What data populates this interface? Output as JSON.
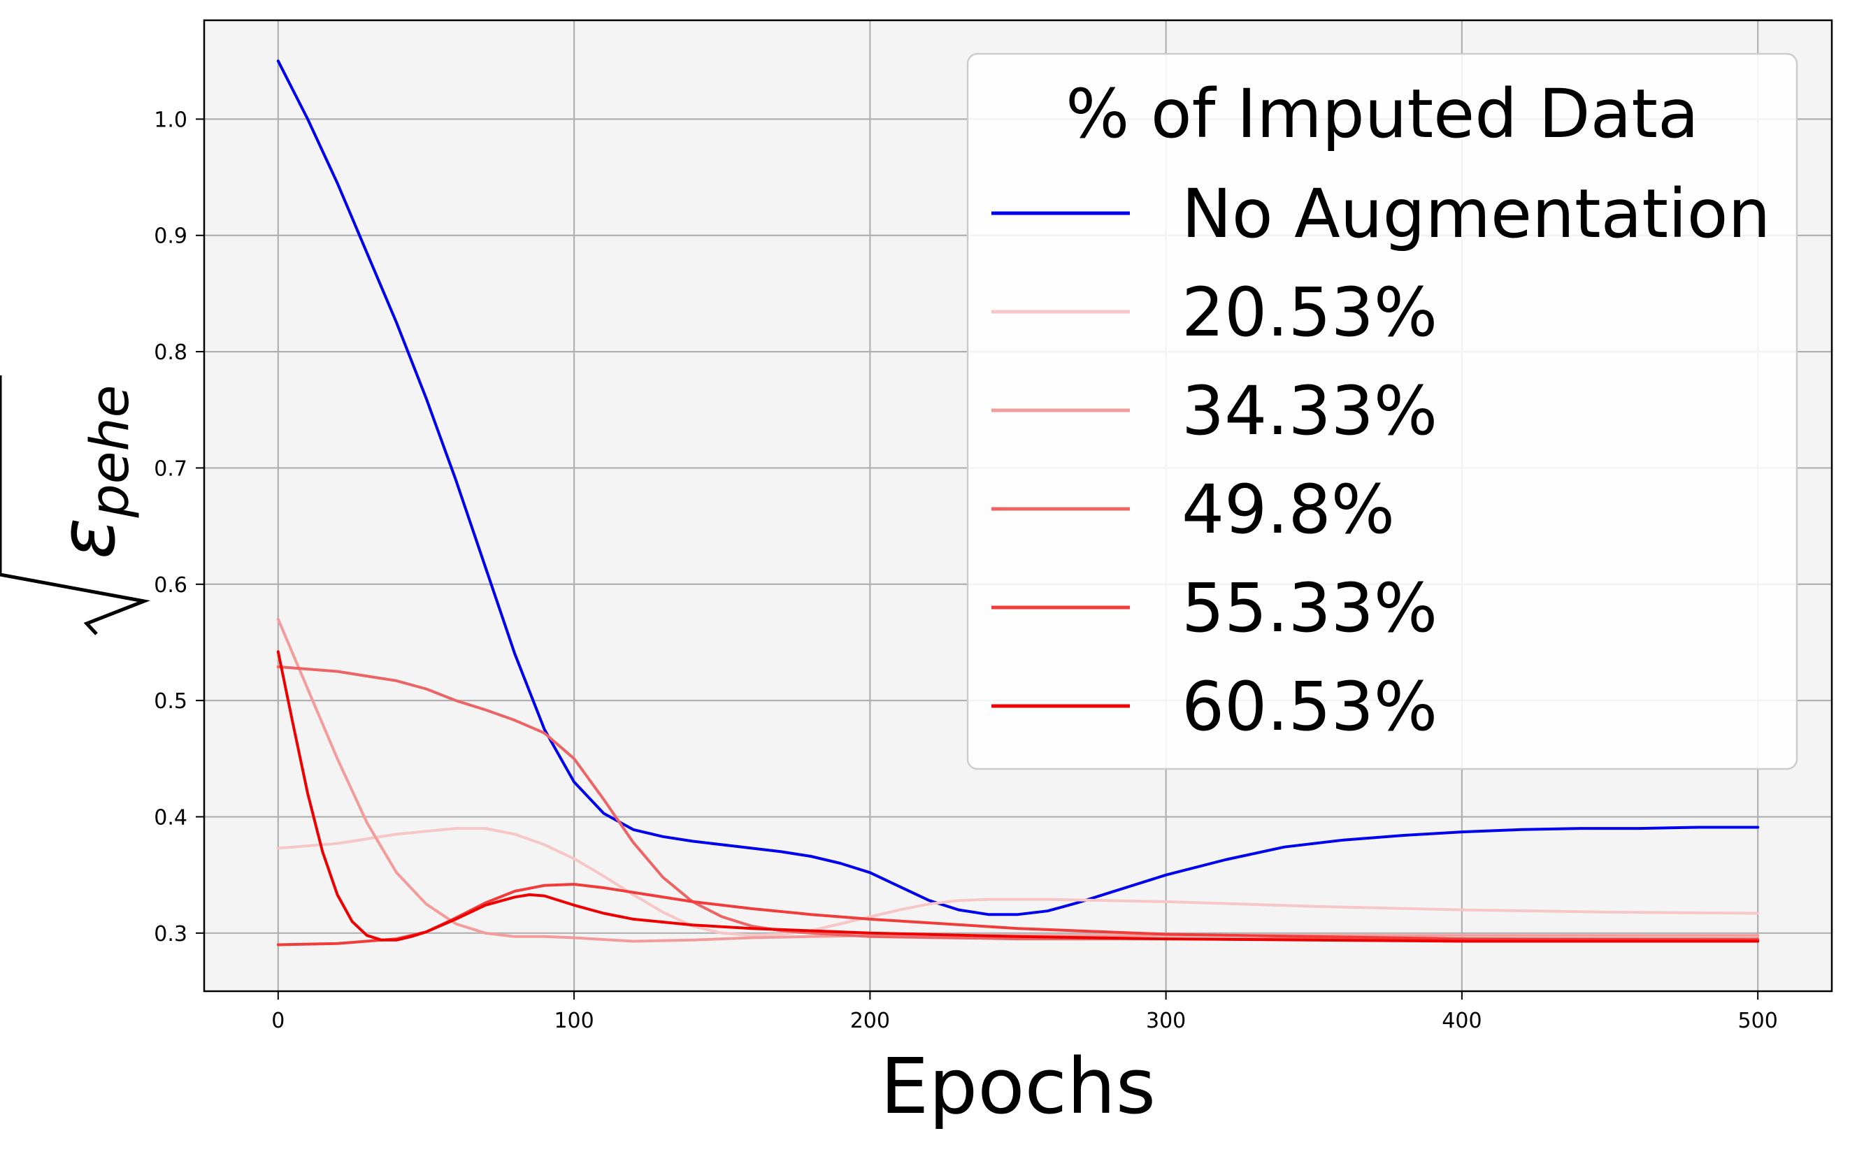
{
  "chart_data": {
    "type": "line",
    "title": "",
    "xlabel": "Epochs",
    "ylabel": {
      "symbol": "ε",
      "subscript": "pehe",
      "root": "√"
    },
    "xlim": [
      -25,
      525
    ],
    "ylim": [
      0.25,
      1.085
    ],
    "xticks": [
      0,
      100,
      200,
      300,
      400,
      500
    ],
    "yticks": [
      0.3,
      0.4,
      0.5,
      0.6,
      0.7,
      0.8,
      0.9,
      1.0
    ],
    "ytick_labels": [
      "0.3",
      "0.4",
      "0.5",
      "0.6",
      "0.7",
      "0.8",
      "0.9",
      "1.0"
    ],
    "grid": true,
    "background": "#f4f4f4",
    "legend": {
      "title": "% of Imputed Data",
      "placement": "top-right"
    },
    "series": [
      {
        "name": "No Augmentation",
        "color": "#0000ee",
        "x": [
          0,
          10,
          20,
          30,
          40,
          50,
          60,
          70,
          80,
          90,
          100,
          110,
          120,
          130,
          140,
          150,
          160,
          170,
          180,
          190,
          200,
          210,
          220,
          230,
          240,
          250,
          260,
          270,
          280,
          290,
          300,
          320,
          340,
          360,
          380,
          400,
          420,
          440,
          460,
          480,
          500
        ],
        "y": [
          1.05,
          1.0,
          0.945,
          0.885,
          0.825,
          0.76,
          0.69,
          0.615,
          0.54,
          0.475,
          0.43,
          0.403,
          0.389,
          0.383,
          0.379,
          0.376,
          0.373,
          0.37,
          0.366,
          0.36,
          0.352,
          0.34,
          0.328,
          0.32,
          0.316,
          0.316,
          0.319,
          0.326,
          0.334,
          0.342,
          0.35,
          0.363,
          0.374,
          0.38,
          0.384,
          0.387,
          0.389,
          0.39,
          0.39,
          0.391,
          0.391
        ]
      },
      {
        "name": "20.53%",
        "color": "#f7c6c6",
        "x": [
          0,
          20,
          40,
          60,
          70,
          80,
          90,
          100,
          110,
          120,
          130,
          140,
          150,
          160,
          170,
          180,
          190,
          200,
          210,
          220,
          230,
          240,
          260,
          280,
          300,
          350,
          400,
          450,
          500
        ],
        "y": [
          0.373,
          0.377,
          0.385,
          0.39,
          0.39,
          0.385,
          0.376,
          0.364,
          0.349,
          0.333,
          0.318,
          0.306,
          0.3,
          0.298,
          0.299,
          0.302,
          0.308,
          0.314,
          0.32,
          0.325,
          0.328,
          0.329,
          0.329,
          0.328,
          0.327,
          0.323,
          0.32,
          0.318,
          0.317
        ]
      },
      {
        "name": "34.33%",
        "color": "#f29c9c",
        "x": [
          0,
          10,
          20,
          30,
          40,
          50,
          60,
          70,
          80,
          90,
          100,
          120,
          140,
          160,
          180,
          200,
          250,
          300,
          400,
          500
        ],
        "y": [
          0.57,
          0.51,
          0.45,
          0.395,
          0.352,
          0.325,
          0.308,
          0.3,
          0.297,
          0.297,
          0.296,
          0.293,
          0.294,
          0.296,
          0.297,
          0.298,
          0.298,
          0.298,
          0.298,
          0.298
        ]
      },
      {
        "name": "49.8%",
        "color": "#ec6464",
        "x": [
          0,
          20,
          40,
          50,
          60,
          70,
          80,
          90,
          100,
          110,
          120,
          130,
          140,
          150,
          160,
          170,
          180,
          200,
          250,
          300,
          400,
          500
        ],
        "y": [
          0.529,
          0.525,
          0.517,
          0.51,
          0.5,
          0.492,
          0.483,
          0.472,
          0.45,
          0.415,
          0.378,
          0.348,
          0.327,
          0.314,
          0.306,
          0.302,
          0.3,
          0.297,
          0.295,
          0.295,
          0.295,
          0.295
        ]
      },
      {
        "name": "55.33%",
        "color": "#f13c3c",
        "x": [
          0,
          20,
          40,
          50,
          60,
          70,
          80,
          90,
          100,
          110,
          120,
          140,
          160,
          180,
          200,
          250,
          300,
          400,
          500
        ],
        "y": [
          0.29,
          0.291,
          0.295,
          0.301,
          0.313,
          0.326,
          0.336,
          0.341,
          0.342,
          0.339,
          0.335,
          0.327,
          0.321,
          0.316,
          0.312,
          0.304,
          0.299,
          0.295,
          0.294
        ]
      },
      {
        "name": "60.53%",
        "color": "#ee0000",
        "x": [
          0,
          5,
          10,
          15,
          20,
          25,
          30,
          35,
          40,
          45,
          50,
          60,
          70,
          80,
          85,
          90,
          100,
          110,
          120,
          140,
          160,
          180,
          200,
          250,
          300,
          400,
          500
        ],
        "y": [
          0.542,
          0.48,
          0.42,
          0.37,
          0.333,
          0.31,
          0.298,
          0.294,
          0.294,
          0.297,
          0.301,
          0.312,
          0.324,
          0.331,
          0.333,
          0.332,
          0.324,
          0.317,
          0.312,
          0.307,
          0.304,
          0.302,
          0.3,
          0.297,
          0.295,
          0.293,
          0.293
        ]
      }
    ]
  }
}
